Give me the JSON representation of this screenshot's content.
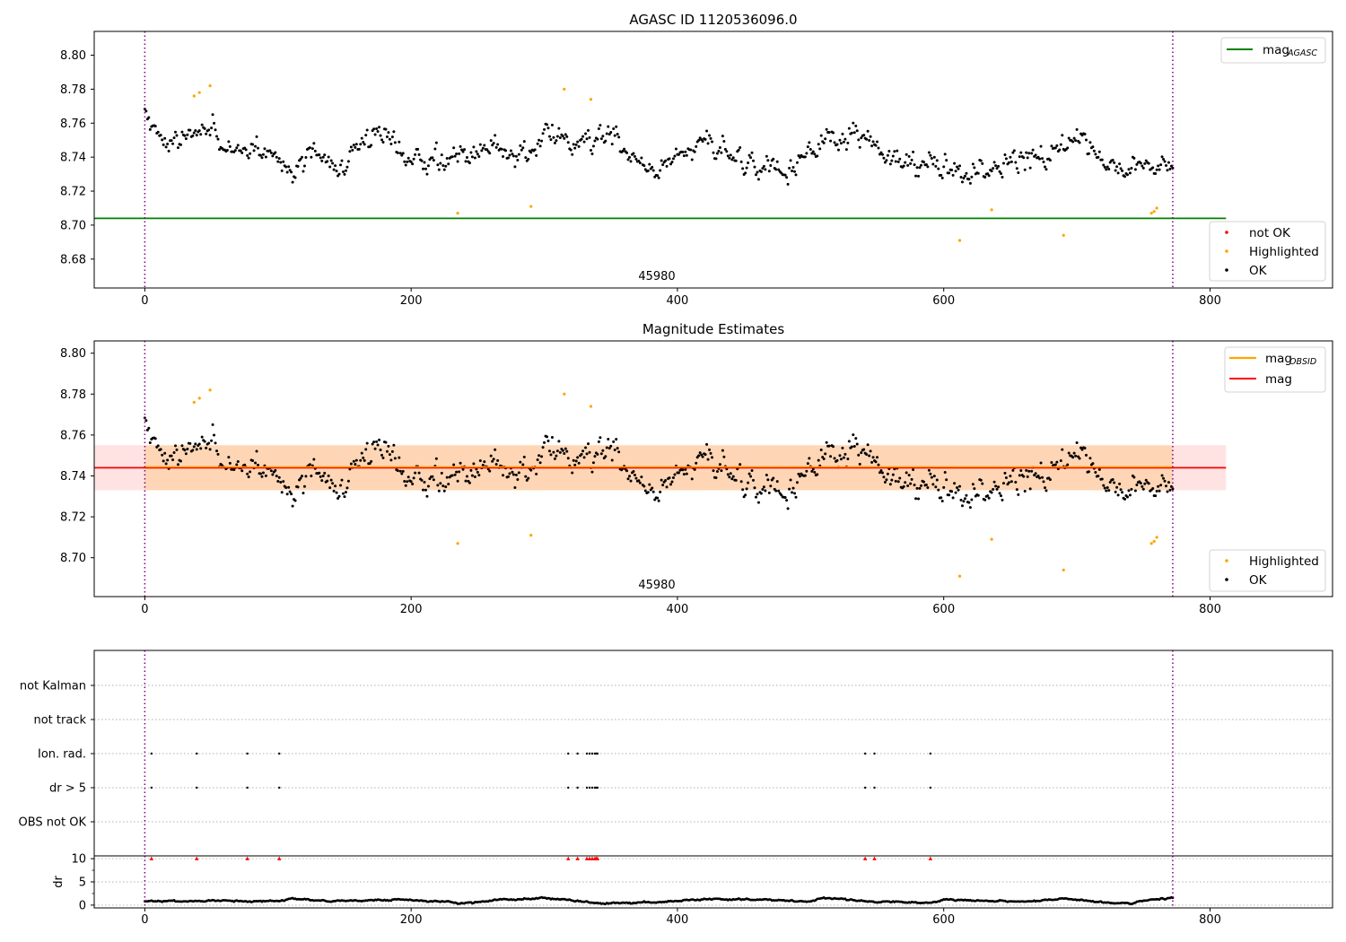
{
  "chart_data": [
    {
      "type": "scatter",
      "title": "AGASC ID 1120536096.0",
      "annotation": "45980",
      "xlim": [
        -38,
        892
      ],
      "ylim": [
        8.663,
        8.814
      ],
      "xticks": [
        0,
        200,
        400,
        600,
        800
      ],
      "yticks": [
        8.68,
        8.7,
        8.72,
        8.74,
        8.76,
        8.78,
        8.8
      ],
      "vlines": [
        0,
        772
      ],
      "mag_agasc": 8.704,
      "legend_lines": [
        {
          "name": "mag",
          "sub": "AGASC",
          "color": "#008000"
        }
      ],
      "legend_points": [
        {
          "name": "not OK",
          "color": "#ff0000"
        },
        {
          "name": "Highlighted",
          "color": "#ffa500"
        },
        {
          "name": "OK",
          "color": "#000000"
        }
      ],
      "highlighted": [
        [
          37,
          8.776
        ],
        [
          41,
          8.778
        ],
        [
          49,
          8.782
        ],
        [
          235,
          8.707
        ],
        [
          290,
          8.711
        ],
        [
          315,
          8.78
        ],
        [
          335,
          8.774
        ],
        [
          612,
          8.691
        ],
        [
          636,
          8.709
        ],
        [
          690,
          8.694
        ],
        [
          756,
          8.707
        ],
        [
          758,
          8.708
        ],
        [
          760,
          8.71
        ]
      ],
      "ok_segments": [
        [
          0,
          8.762
        ],
        [
          15,
          8.75
        ],
        [
          30,
          8.752
        ],
        [
          50,
          8.76
        ],
        [
          55,
          8.745
        ],
        [
          80,
          8.745
        ],
        [
          100,
          8.74
        ],
        [
          110,
          8.733
        ],
        [
          130,
          8.742
        ],
        [
          150,
          8.738
        ],
        [
          165,
          8.752
        ],
        [
          180,
          8.758
        ],
        [
          190,
          8.748
        ],
        [
          200,
          8.738
        ],
        [
          215,
          8.74
        ],
        [
          230,
          8.742
        ],
        [
          250,
          8.744
        ],
        [
          260,
          8.746
        ],
        [
          275,
          8.738
        ],
        [
          290,
          8.742
        ],
        [
          300,
          8.752
        ],
        [
          320,
          8.748
        ],
        [
          340,
          8.75
        ],
        [
          355,
          8.75
        ],
        [
          370,
          8.738
        ],
        [
          390,
          8.732
        ],
        [
          400,
          8.745
        ],
        [
          420,
          8.748
        ],
        [
          440,
          8.74
        ],
        [
          455,
          8.736
        ],
        [
          470,
          8.738
        ],
        [
          490,
          8.732
        ],
        [
          510,
          8.75
        ],
        [
          530,
          8.752
        ],
        [
          545,
          8.752
        ],
        [
          560,
          8.74
        ],
        [
          580,
          8.735
        ],
        [
          600,
          8.733
        ],
        [
          620,
          8.732
        ],
        [
          640,
          8.735
        ],
        [
          660,
          8.74
        ],
        [
          680,
          8.742
        ],
        [
          700,
          8.748
        ],
        [
          720,
          8.74
        ],
        [
          740,
          8.734
        ],
        [
          760,
          8.732
        ],
        [
          772,
          8.738
        ]
      ]
    },
    {
      "type": "scatter",
      "title": "Magnitude Estimates",
      "annotation": "45980",
      "xlim": [
        -38,
        892
      ],
      "ylim": [
        8.681,
        8.806
      ],
      "xticks": [
        0,
        200,
        400,
        600,
        800
      ],
      "yticks": [
        8.7,
        8.72,
        8.74,
        8.76,
        8.78,
        8.8
      ],
      "vlines": [
        0,
        772
      ],
      "mag": 8.744,
      "mag_band": [
        8.733,
        8.755
      ],
      "mag_obsid": 8.744,
      "mag_obsid_band": [
        8.733,
        8.755
      ],
      "legend_lines": [
        {
          "name": "mag",
          "sub": "OBSID",
          "color": "#ffa500"
        },
        {
          "name": "mag",
          "sub": "",
          "color": "#ff0000"
        }
      ],
      "legend_points": [
        {
          "name": "Highlighted",
          "color": "#ffa500"
        },
        {
          "name": "OK",
          "color": "#000000"
        }
      ]
    },
    {
      "type": "scatter",
      "xlim": [
        -38,
        892
      ],
      "xticks": [
        0,
        200,
        400,
        600,
        800
      ],
      "vlines": [
        0,
        772
      ],
      "flag_categories": [
        "not Kalman",
        "not track",
        "Ion. rad.",
        "dr > 5",
        "OBS not OK"
      ],
      "flag_times": [
        5,
        39,
        77,
        101,
        318,
        325,
        332,
        334,
        336,
        338,
        339,
        340,
        541,
        548,
        590
      ],
      "flag_rows_set": [
        "Ion. rad.",
        "dr > 5"
      ],
      "dr_ylabel": "dr",
      "dr_yticks": [
        0,
        5,
        10
      ],
      "dr_ylim": [
        -0.6,
        10.6
      ],
      "dr_clip": 10,
      "dr_segments": [
        [
          0,
          0.8
        ],
        [
          40,
          0.9
        ],
        [
          60,
          1.0
        ],
        [
          80,
          0.8
        ],
        [
          100,
          0.9
        ],
        [
          110,
          1.3
        ],
        [
          140,
          0.9
        ],
        [
          180,
          1.1
        ],
        [
          200,
          1.1
        ],
        [
          240,
          0.4
        ],
        [
          265,
          1.2
        ],
        [
          290,
          1.3
        ],
        [
          300,
          1.6
        ],
        [
          320,
          1.0
        ],
        [
          340,
          0.4
        ],
        [
          380,
          0.5
        ],
        [
          420,
          1.3
        ],
        [
          470,
          1.1
        ],
        [
          500,
          0.8
        ],
        [
          510,
          1.6
        ],
        [
          540,
          0.8
        ],
        [
          590,
          0.5
        ],
        [
          600,
          1.2
        ],
        [
          640,
          0.9
        ],
        [
          660,
          0.7
        ],
        [
          690,
          1.4
        ],
        [
          720,
          0.6
        ],
        [
          740,
          0.3
        ],
        [
          755,
          1.2
        ],
        [
          772,
          1.5
        ]
      ]
    }
  ]
}
